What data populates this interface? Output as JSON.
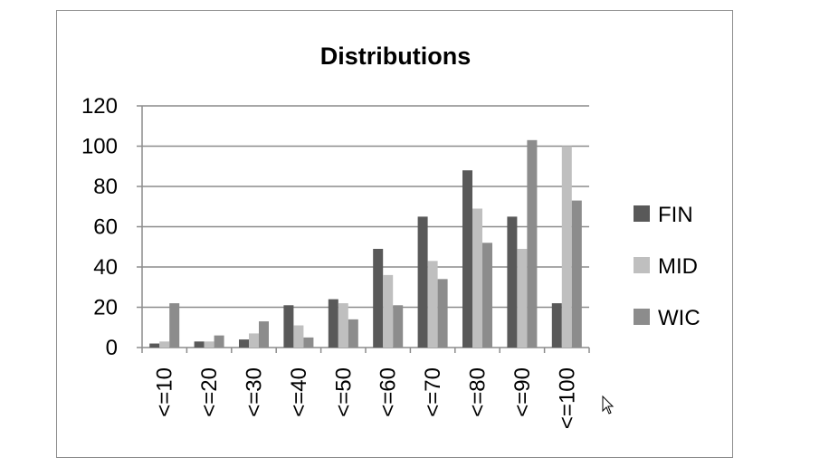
{
  "chart_data": {
    "type": "bar",
    "title": "Distributions",
    "xlabel": "",
    "ylabel": "",
    "categories": [
      "<=10",
      "<=20",
      "<=30",
      "<=40",
      "<=50",
      "<=60",
      "<=70",
      "<=80",
      "<=90",
      "<=100"
    ],
    "series": [
      {
        "name": "FIN",
        "color": "#595959",
        "values": [
          2,
          3,
          4,
          21,
          24,
          49,
          65,
          88,
          65,
          22
        ]
      },
      {
        "name": "MID",
        "color": "#bfbfbf",
        "values": [
          3,
          3,
          7,
          11,
          22,
          36,
          43,
          69,
          49,
          100
        ]
      },
      {
        "name": "WIC",
        "color": "#8c8c8c",
        "values": [
          22,
          6,
          13,
          5,
          14,
          21,
          34,
          52,
          103,
          73
        ]
      }
    ],
    "ylim": [
      0,
      120
    ],
    "yticks": [
      0,
      20,
      40,
      60,
      80,
      100,
      120
    ],
    "grid": true,
    "legend": "right"
  },
  "icons": {
    "cursor": "mouse-pointer-icon"
  }
}
